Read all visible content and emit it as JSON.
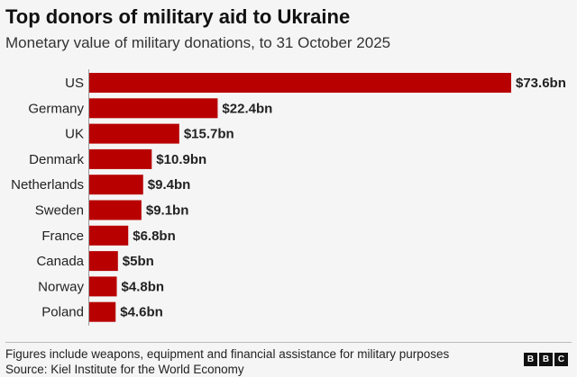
{
  "chart_data": {
    "type": "bar",
    "orientation": "horizontal",
    "title": "Top donors of military aid to Ukraine",
    "subtitle": "Monetary value of military donations, to 31 October 2025",
    "categories": [
      "US",
      "Germany",
      "UK",
      "Denmark",
      "Netherlands",
      "Sweden",
      "France",
      "Canada",
      "Norway",
      "Poland"
    ],
    "values": [
      73.6,
      22.4,
      15.7,
      10.9,
      9.4,
      9.1,
      6.8,
      5,
      4.8,
      4.6
    ],
    "data_labels": [
      "$73.6bn",
      "$22.4bn",
      "$15.7bn",
      "$10.9bn",
      "$9.4bn",
      "$9.1bn",
      "$6.8bn",
      "$5bn",
      "$4.8bn",
      "$4.6bn"
    ],
    "unit": "US$ billion",
    "xlim": [
      0,
      73.6
    ],
    "grid": false,
    "bar_color": "#b80000"
  },
  "footer": {
    "note": "Figures include weapons, equipment and financial assistance for military purposes",
    "source": "Source: Kiel Institute for the World Economy",
    "logo": [
      "B",
      "B",
      "C"
    ]
  }
}
